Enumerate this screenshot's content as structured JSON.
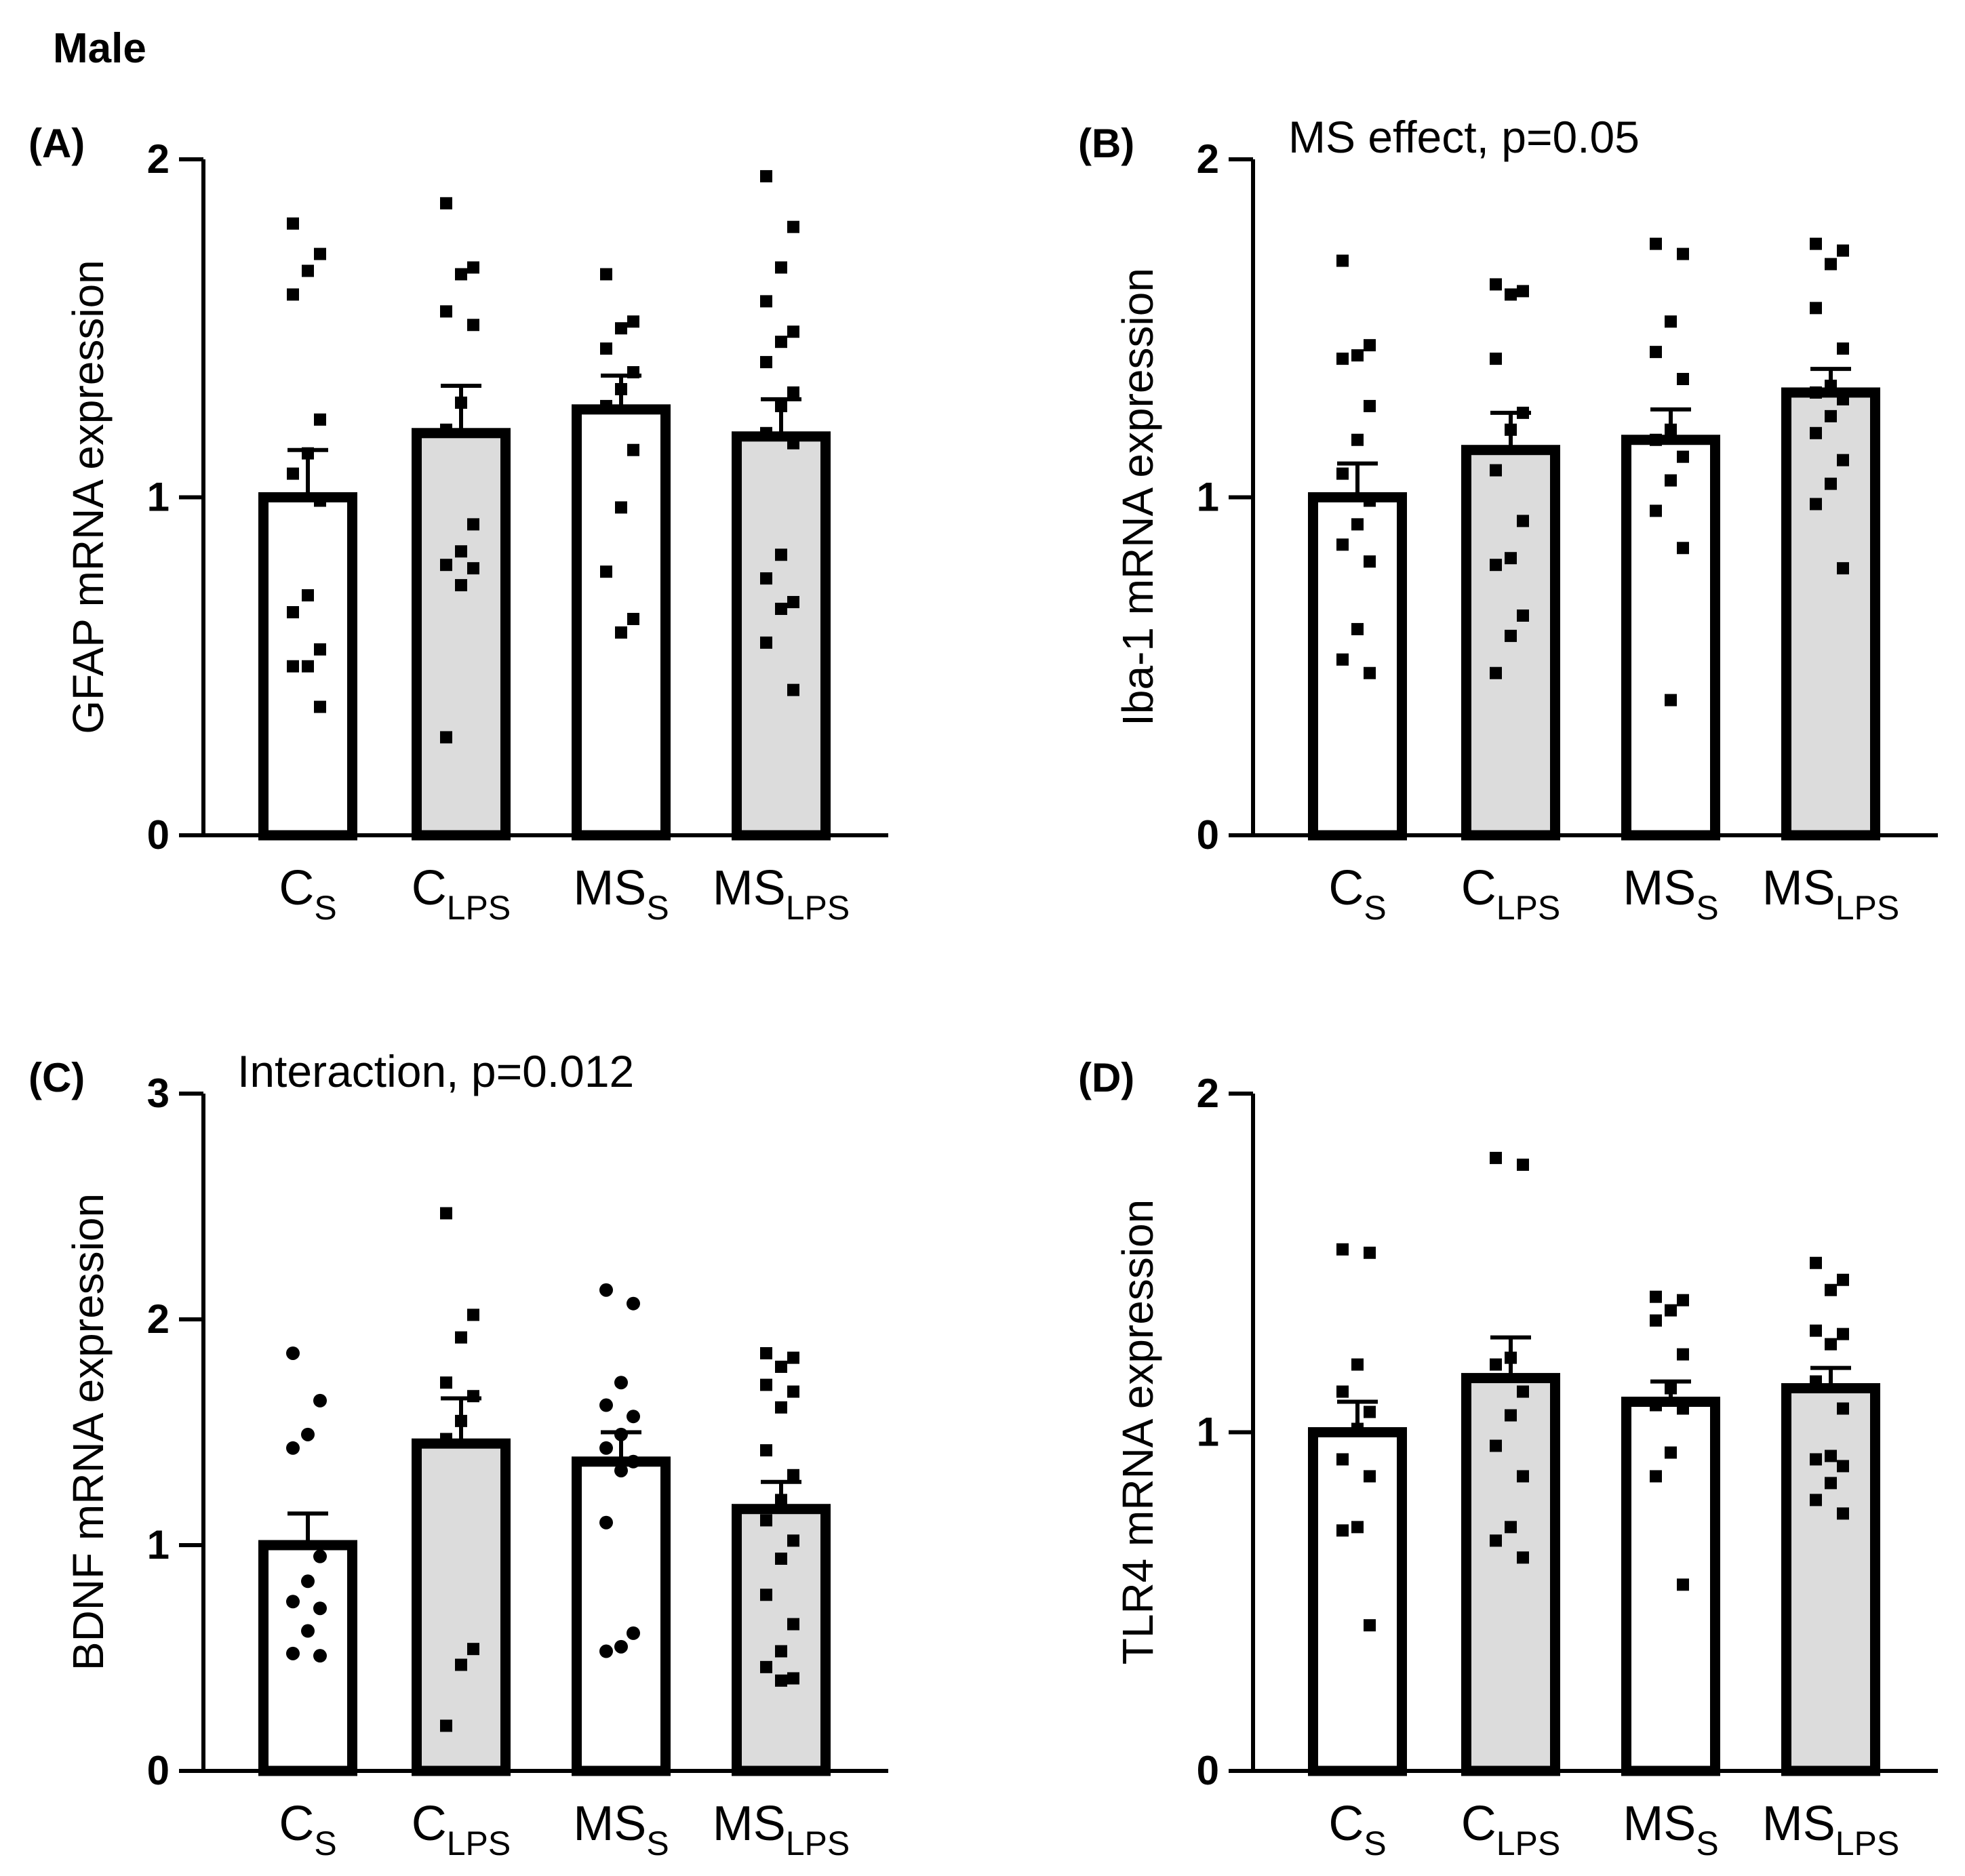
{
  "figure_title": "Male",
  "colors": {
    "control_fill": "#ffffff",
    "lps_fill": "#dcdcdc",
    "ink": "#000000"
  },
  "chart_data": [
    {
      "panel": "(A)",
      "type": "bar",
      "ylabel": "GFAP mRNA expression",
      "ylim": [
        0,
        2
      ],
      "yticks": [
        "0",
        "1",
        "2"
      ],
      "annotation": "",
      "categories": [
        {
          "main": "C",
          "sub": "S"
        },
        {
          "main": "C",
          "sub": "LPS"
        },
        {
          "main": "MS",
          "sub": "S"
        },
        {
          "main": "MS",
          "sub": "LPS"
        }
      ],
      "values": [
        1.0,
        1.19,
        1.26,
        1.18
      ],
      "sem": [
        0.14,
        0.14,
        0.1,
        0.11
      ],
      "points": [
        [
          1.81,
          1.72,
          1.67,
          1.6,
          1.23,
          1.13,
          1.07,
          0.99,
          0.71,
          0.66,
          0.55,
          0.5,
          0.5,
          0.38
        ],
        [
          1.87,
          1.68,
          1.66,
          1.55,
          1.51,
          1.28,
          1.2,
          0.92,
          0.84,
          0.8,
          0.79,
          0.74,
          0.29
        ],
        [
          1.66,
          1.52,
          1.5,
          1.44,
          1.37,
          1.32,
          1.27,
          1.14,
          0.97,
          0.78,
          0.64,
          0.6
        ],
        [
          1.95,
          1.8,
          1.68,
          1.58,
          1.49,
          1.46,
          1.4,
          1.31,
          1.27,
          1.19,
          1.16,
          0.83,
          0.76,
          0.69,
          0.67,
          0.57,
          0.43
        ]
      ],
      "marker": "square"
    },
    {
      "panel": "(B)",
      "type": "bar",
      "ylabel": "Iba-1 mRNA expression",
      "ylim": [
        0,
        2
      ],
      "yticks": [
        "0",
        "1",
        "2"
      ],
      "annotation": "MS effect, p=0.05",
      "categories": [
        {
          "main": "C",
          "sub": "S"
        },
        {
          "main": "C",
          "sub": "LPS"
        },
        {
          "main": "MS",
          "sub": "S"
        },
        {
          "main": "MS",
          "sub": "LPS"
        }
      ],
      "values": [
        1.0,
        1.14,
        1.17,
        1.31
      ],
      "sem": [
        0.1,
        0.11,
        0.09,
        0.07
      ],
      "points": [
        [
          1.7,
          1.45,
          1.42,
          1.41,
          1.27,
          1.17,
          1.07,
          0.99,
          0.92,
          0.86,
          0.81,
          0.61,
          0.52,
          0.48
        ],
        [
          1.63,
          1.61,
          1.6,
          1.41,
          1.25,
          1.2,
          1.08,
          0.93,
          0.82,
          0.8,
          0.65,
          0.59,
          0.48
        ],
        [
          1.75,
          1.72,
          1.52,
          1.43,
          1.35,
          1.2,
          1.17,
          1.12,
          1.05,
          0.96,
          0.85,
          0.4
        ],
        [
          1.75,
          1.73,
          1.69,
          1.56,
          1.44,
          1.33,
          1.31,
          1.29,
          1.24,
          1.19,
          1.11,
          1.04,
          0.98,
          0.79
        ]
      ],
      "marker": "square"
    },
    {
      "panel": "(C)",
      "type": "bar",
      "ylabel": "BDNF mRNA expression",
      "ylim": [
        0,
        3
      ],
      "yticks": [
        "0",
        "1",
        "2",
        "3"
      ],
      "annotation": "Interaction, p=0.012",
      "categories": [
        {
          "main": "C",
          "sub": "S"
        },
        {
          "main": "C",
          "sub": "LPS"
        },
        {
          "main": "MS",
          "sub": "S"
        },
        {
          "main": "MS",
          "sub": "LPS"
        }
      ],
      "values": [
        1.0,
        1.45,
        1.37,
        1.16
      ],
      "sem": [
        0.14,
        0.2,
        0.13,
        0.12
      ],
      "points": [
        [
          1.85,
          1.64,
          1.49,
          1.43,
          0.95,
          0.84,
          0.75,
          0.72,
          0.62,
          0.52,
          0.51
        ],
        [
          2.47,
          2.02,
          1.92,
          1.72,
          1.66,
          1.55,
          1.47,
          0.54,
          0.47,
          0.2
        ],
        [
          2.13,
          2.07,
          1.72,
          1.62,
          1.57,
          1.49,
          1.43,
          1.37,
          1.33,
          1.1,
          0.61,
          0.55,
          0.53
        ],
        [
          1.85,
          1.83,
          1.79,
          1.71,
          1.68,
          1.61,
          1.42,
          1.31,
          1.2,
          1.11,
          1.02,
          0.94,
          0.78,
          0.65,
          0.53,
          0.46,
          0.41,
          0.4
        ]
      ],
      "marker": "mixed"
    },
    {
      "panel": "(D)",
      "type": "bar",
      "ylabel": "TLR4 mRNA expression",
      "ylim": [
        0,
        2
      ],
      "yticks": [
        "0",
        "1",
        "2"
      ],
      "annotation": "",
      "categories": [
        {
          "main": "C",
          "sub": "S"
        },
        {
          "main": "C",
          "sub": "LPS"
        },
        {
          "main": "MS",
          "sub": "S"
        },
        {
          "main": "MS",
          "sub": "LPS"
        }
      ],
      "values": [
        1.0,
        1.16,
        1.09,
        1.13
      ],
      "sem": [
        0.09,
        0.12,
        0.06,
        0.06
      ],
      "points": [
        [
          1.54,
          1.53,
          1.2,
          1.12,
          1.06,
          1.01,
          0.92,
          0.87,
          0.72,
          0.71,
          0.43
        ],
        [
          1.81,
          1.79,
          1.22,
          1.2,
          1.12,
          1.05,
          0.96,
          0.87,
          0.72,
          0.68,
          0.63
        ],
        [
          1.4,
          1.39,
          1.36,
          1.33,
          1.23,
          1.13,
          1.08,
          1.07,
          0.94,
          0.87,
          0.55
        ],
        [
          1.5,
          1.45,
          1.42,
          1.3,
          1.29,
          1.26,
          1.15,
          1.07,
          0.93,
          0.92,
          0.9,
          0.85,
          0.8,
          0.76
        ]
      ],
      "marker": "square"
    }
  ]
}
